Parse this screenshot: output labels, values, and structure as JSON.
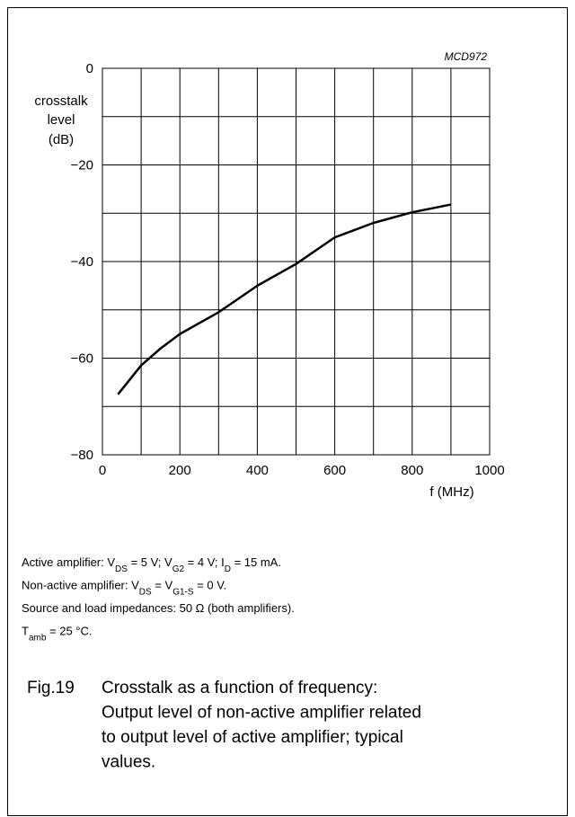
{
  "chart_data": {
    "type": "line",
    "code": "MCD972",
    "ylabel": [
      "crosstalk",
      "level",
      "(dB)"
    ],
    "xlabel": "f (MHz)",
    "x": [
      40,
      100,
      150,
      200,
      300,
      400,
      500,
      600,
      700,
      800,
      900
    ],
    "series": [
      {
        "color": "#000000",
        "values": [
          -67.5,
          -61.5,
          -58,
          -55,
          -50.5,
          -45,
          -40.5,
          -35,
          -32,
          -29.8,
          -28.2
        ]
      }
    ],
    "xlim": [
      0,
      1000
    ],
    "ylim": [
      -80,
      0
    ],
    "xticks": [
      0,
      200,
      400,
      600,
      800,
      1000
    ],
    "xticks_minor": [
      100,
      300,
      500,
      700,
      900
    ],
    "yticks": [
      {
        "value": 0,
        "label": "0"
      },
      {
        "value": -20,
        "label": "−20"
      },
      {
        "value": -40,
        "label": "−40"
      },
      {
        "value": -60,
        "label": "−60"
      },
      {
        "value": -80,
        "label": "−80"
      }
    ],
    "yticks_minor": [
      -10,
      -30,
      -50,
      -70
    ],
    "grid": true
  },
  "notes": [
    [
      "Active amplifier: V",
      {
        "sub": "DS"
      },
      " = 5 V; V",
      {
        "sub": "G2"
      },
      " = 4 V; I",
      {
        "sub": "D"
      },
      " = 15 mA."
    ],
    [
      "Non-active amplifier: V",
      {
        "sub": "DS"
      },
      " = V",
      {
        "sub": "G1-S"
      },
      " = 0 V."
    ],
    [
      "Source and load impedances: 50 Ω (both amplifiers)."
    ],
    [
      "T",
      {
        "sub": "amb"
      },
      " = 25 °C."
    ]
  ],
  "caption": {
    "label": "Fig.19",
    "lines": [
      "Crosstalk as a function of frequency:",
      "Output level of non-active amplifier related",
      "to output level of active amplifier; typical",
      "values."
    ]
  }
}
